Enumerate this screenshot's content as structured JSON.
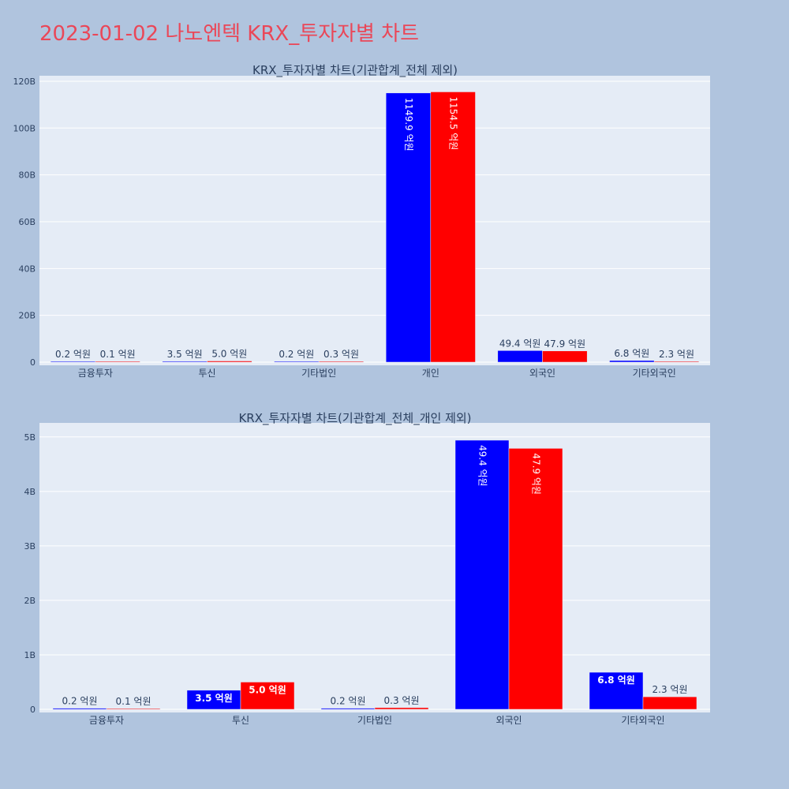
{
  "page": {
    "title": "2023-01-02 나노엔텍 KRX_투자자별 차트"
  },
  "colors": {
    "series_a": "#0000ff",
    "series_b": "#ff0000",
    "plot_bg": "#e5ecf6",
    "page_bg": "#b0c4de",
    "title": "#ea4758"
  },
  "chart_data": [
    {
      "type": "bar",
      "title": "KRX_투자자별 차트(기관합계_전체 제외)",
      "categories": [
        "금융투자",
        "투신",
        "기타법인",
        "개인",
        "외국인",
        "기타외국인"
      ],
      "series": [
        {
          "color": "#0000ff",
          "values": [
            20000000,
            350000000,
            20000000,
            114990000000,
            4940000000,
            680000000
          ],
          "labels": [
            "0.2 억원",
            "3.5 억원",
            "0.2 억원",
            "1149.9 억원",
            "49.4 억원",
            "6.8 억원"
          ]
        },
        {
          "color": "#ff0000",
          "values": [
            10000000,
            500000000,
            30000000,
            115450000000,
            4790000000,
            230000000
          ],
          "labels": [
            "0.1 억원",
            "5.0 억원",
            "0.3 억원",
            "1154.5 억원",
            "47.9 억원",
            "2.3 억원"
          ]
        }
      ],
      "yticks": [
        0,
        20000000000,
        40000000000,
        60000000000,
        80000000000,
        100000000000,
        120000000000
      ],
      "ytick_labels": [
        "0",
        "20B",
        "40B",
        "60B",
        "80B",
        "100B",
        "120B"
      ],
      "ylim": [
        0,
        121000000000
      ],
      "grid": true
    },
    {
      "type": "bar",
      "title": "KRX_투자자별 차트(기관합계_전체_개인 제외)",
      "categories": [
        "금융투자",
        "투신",
        "기타법인",
        "외국인",
        "기타외국인"
      ],
      "series": [
        {
          "color": "#0000ff",
          "values": [
            20000000,
            350000000,
            20000000,
            4940000000,
            680000000
          ],
          "labels": [
            "0.2 억원",
            "3.5 억원",
            "0.2 억원",
            "49.4 억원",
            "6.8 억원"
          ]
        },
        {
          "color": "#ff0000",
          "values": [
            10000000,
            500000000,
            30000000,
            4790000000,
            230000000
          ],
          "labels": [
            "0.1 억원",
            "5.0 억원",
            "0.3 억원",
            "47.9 억원",
            "2.3 억원"
          ]
        }
      ],
      "yticks": [
        0,
        1000000000,
        2000000000,
        3000000000,
        4000000000,
        5000000000
      ],
      "ytick_labels": [
        "0",
        "1B",
        "2B",
        "3B",
        "4B",
        "5B"
      ],
      "ylim": [
        0,
        5200000000
      ],
      "grid": true
    }
  ]
}
